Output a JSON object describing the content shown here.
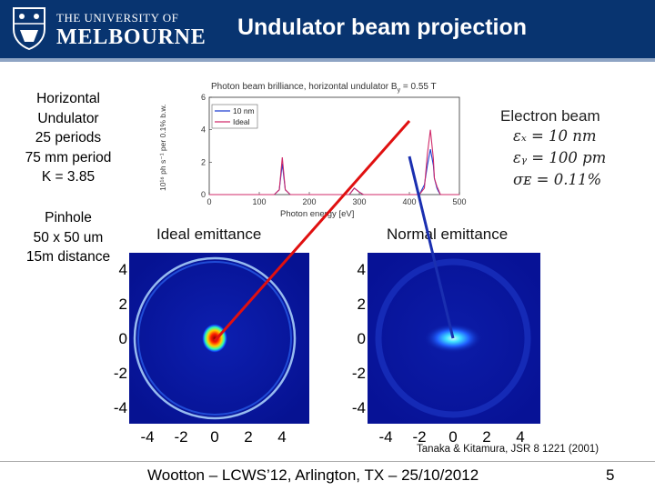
{
  "header": {
    "logo_line1": "THE UNIVERSITY OF",
    "logo_line2": "MELBOURNE",
    "title": "Undulator beam projection"
  },
  "left_text": {
    "undulator": [
      "Horizontal",
      "Undulator",
      "25 periods",
      "75 mm period",
      "K = 3.85"
    ],
    "pinhole": [
      "Pinhole",
      "50 x 50 um",
      "15m distance"
    ]
  },
  "spectrum": {
    "title": "Photon beam brilliance, horizontal undulator B",
    "title_sub": "y",
    "title_tail": " = 0.55 T",
    "ylabel": "10¹⁶ ph s⁻¹ per 0.1% b.w.",
    "xlabel": "Photon energy [eV]",
    "legend": [
      "10 nm",
      "Ideal"
    ],
    "x_ticks": [
      "0",
      "100",
      "200",
      "300",
      "400",
      "500"
    ],
    "y_ticks": [
      "0",
      "2",
      "4",
      "6"
    ],
    "colors": {
      "10nm": "#1f3fd0",
      "ideal": "#d02a6a"
    }
  },
  "chart_data": [
    {
      "type": "line",
      "title": "Photon beam brilliance, horizontal undulator By = 0.55 T",
      "xlabel": "Photon energy [eV]",
      "ylabel": "10^16 ph s^-1 per 0.1% b.w.",
      "xlim": [
        0,
        500
      ],
      "ylim": [
        0,
        6
      ],
      "series": [
        {
          "name": "10 nm",
          "x": [
            0,
            130,
            140,
            146,
            152,
            162,
            280,
            290,
            300,
            308,
            420,
            430,
            436,
            442,
            448,
            450,
            455,
            458,
            462,
            470,
            500
          ],
          "y": [
            0,
            0,
            0.3,
            1.9,
            0.3,
            0,
            0,
            0.4,
            0.15,
            0,
            0,
            0.6,
            1.8,
            2.8,
            1.8,
            1.0,
            0.4,
            0.2,
            0,
            0,
            0
          ]
        },
        {
          "name": "Ideal",
          "x": [
            0,
            130,
            140,
            146,
            152,
            162,
            280,
            290,
            300,
            308,
            420,
            430,
            436,
            442,
            448,
            450,
            455,
            458,
            462,
            470,
            500
          ],
          "y": [
            0,
            0,
            0.3,
            2.3,
            0.3,
            0,
            0,
            0.4,
            0.15,
            0,
            0,
            0.4,
            2.5,
            4.0,
            2.2,
            1.0,
            0.5,
            0.3,
            0,
            0,
            0
          ]
        }
      ]
    }
  ],
  "electron_beam": {
    "heading": "Electron beam",
    "rows": [
      "εₓ = 10 nm",
      "εᵧ = 100 pm",
      "σᴇ = 0.11%"
    ]
  },
  "panels": {
    "ideal_label": "Ideal emittance",
    "normal_label": "Normal emittance",
    "ideal_y_ticks": [
      "4",
      "2",
      "0",
      "-2",
      "-4"
    ],
    "ideal_x_ticks": [
      "-4",
      "-2",
      "0",
      "2",
      "4"
    ],
    "normal_y_ticks": [
      "4",
      "2",
      "0",
      "-2",
      "-4"
    ],
    "normal_x_ticks": [
      "-4",
      "-2",
      "0",
      "2",
      "4"
    ]
  },
  "citation": "Tanaka & Kitamura, JSR 8 1221 (2001)",
  "footer": {
    "text": "Wootton – LCWS’12, Arlington, TX – 25/10/2012",
    "page": "5"
  },
  "colors": {
    "header_bg": "#083470",
    "red_line": "#e01010",
    "blue_line": "#1a2fb0",
    "panel_bg": "#0a1a9a"
  }
}
